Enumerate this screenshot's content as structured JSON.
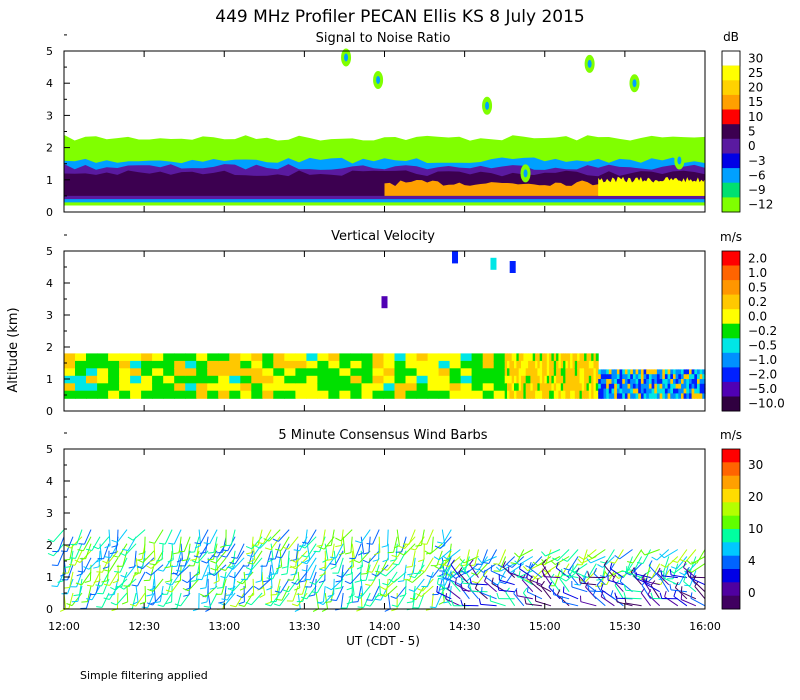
{
  "title": "449 MHz Profiler PECAN Ellis KS   8 July 2015",
  "footnote": "Simple filtering applied",
  "y_axis_label": "Altitude (km)",
  "x_axis_label": "UT  (CDT - 5)",
  "x_ticks": [
    "12:00",
    "12:30",
    "13:00",
    "13:30",
    "14:00",
    "14:30",
    "15:00",
    "15:30",
    "16:00"
  ],
  "y_ticks": [
    "0",
    "1",
    "2",
    "3",
    "4",
    "5"
  ],
  "panels": [
    {
      "id": "snr",
      "title": "Signal to Noise Ratio",
      "unit": "dB",
      "colorbar_labels": [
        "30",
        "25",
        "20",
        "15",
        "10",
        "5",
        "0",
        "−3",
        "−6",
        "−9",
        "−12"
      ],
      "colors": [
        "#ffffff",
        "#ffff00",
        "#ffd200",
        "#ffa000",
        "#ff0000",
        "#3c0050",
        "#5a1aa0",
        "#0000e6",
        "#00a0ff",
        "#00e070",
        "#80ff00"
      ]
    },
    {
      "id": "vv",
      "title": "Vertical Velocity",
      "unit": "m/s",
      "colorbar_labels": [
        "2.0",
        "1.0",
        "0.5",
        "0.2",
        "0.0",
        "−0.2",
        "−0.5",
        "−1.0",
        "−2.0",
        "−5.0",
        "−10.0"
      ],
      "colors": [
        "#ff0000",
        "#ff6400",
        "#ff9600",
        "#ffc800",
        "#ffff00",
        "#00e000",
        "#00e6e6",
        "#0090ff",
        "#0020ff",
        "#5000b4",
        "#300040"
      ]
    },
    {
      "id": "wind",
      "title": "5 Minute Consensus Wind Barbs",
      "unit": "m/s",
      "colorbar_labels": [
        "30",
        "20",
        "10",
        "4",
        "0"
      ],
      "colors": [
        "#ff0000",
        "#ff6400",
        "#ffa000",
        "#ffdc00",
        "#b4ff00",
        "#60ff00",
        "#00ffa0",
        "#00c8ff",
        "#0064ff",
        "#0000e6",
        "#5000a0",
        "#400060"
      ]
    }
  ],
  "chart_data": [
    {
      "type": "heatmap",
      "title": "Signal to Noise Ratio",
      "unit": "dB",
      "x_range": [
        "12:00",
        "16:00"
      ],
      "ylabel": "Altitude (km)",
      "ylim": [
        0,
        5
      ],
      "color_levels": [
        30,
        25,
        20,
        15,
        10,
        5,
        0,
        -3,
        -6,
        -9,
        -12
      ],
      "layers": [
        {
          "level_db": -12,
          "alt_km": [
            0.2,
            2.3
          ],
          "time_range": [
            "12:00",
            "16:00"
          ]
        },
        {
          "level_db": -6,
          "alt_km": [
            0.3,
            1.6
          ],
          "time_range": [
            "12:00",
            "16:00"
          ]
        },
        {
          "level_db": 0,
          "alt_km": [
            0.4,
            1.4
          ],
          "time_range": [
            "12:00",
            "16:00"
          ]
        },
        {
          "level_db": 5,
          "alt_km": [
            0.5,
            1.2
          ],
          "time_range": [
            "12:00",
            "16:00"
          ]
        },
        {
          "level_db": 15,
          "alt_km": [
            0.5,
            0.9
          ],
          "time_range": [
            "14:00",
            "16:00"
          ]
        },
        {
          "level_db": 25,
          "alt_km": [
            0.5,
            1.0
          ],
          "time_range": [
            "15:20",
            "16:00"
          ]
        }
      ]
    },
    {
      "type": "heatmap",
      "title": "Vertical Velocity",
      "unit": "m/s",
      "x_range": [
        "12:00",
        "16:00"
      ],
      "ylabel": "Altitude (km)",
      "ylim": [
        0,
        5
      ],
      "color_levels": [
        2.0,
        1.0,
        0.5,
        0.2,
        0.0,
        -0.2,
        -0.5,
        -1.0,
        -2.0,
        -5.0,
        -10.0
      ],
      "regions": [
        {
          "time_range": [
            "12:00",
            "14:45"
          ],
          "alt_km": [
            0.4,
            1.8
          ],
          "velocity_ms": [
            -0.5,
            0.5
          ]
        },
        {
          "time_range": [
            "14:45",
            "15:20"
          ],
          "alt_km": [
            0.4,
            1.8
          ],
          "velocity_ms": [
            0.0,
            0.5
          ]
        },
        {
          "time_range": [
            "15:20",
            "16:00"
          ],
          "alt_km": [
            0.4,
            1.3
          ],
          "velocity_ms": [
            -2.0,
            -0.5
          ]
        }
      ]
    },
    {
      "type": "wind_barbs",
      "title": "5 Minute Consensus Wind Barbs",
      "unit": "m/s",
      "x_range": [
        "12:00",
        "16:00"
      ],
      "interval_min": 5,
      "ylabel": "Altitude (km)",
      "ylim": [
        0,
        5
      ],
      "color_levels": [
        30,
        20,
        10,
        4,
        0
      ],
      "layers": [
        {
          "time_range": [
            "12:00",
            "14:25"
          ],
          "alt_km": [
            0.5,
            2.5
          ],
          "speed_ms": [
            8,
            14
          ],
          "from_deg": 200
        },
        {
          "time_range": [
            "14:25",
            "16:00"
          ],
          "alt_km": [
            1.2,
            2.0
          ],
          "speed_ms": [
            8,
            12
          ],
          "from_deg": 220
        },
        {
          "time_range": [
            "14:25",
            "16:00"
          ],
          "alt_km": [
            0.1,
            1.0
          ],
          "speed_ms": [
            0,
            6
          ],
          "from_deg": 300
        }
      ]
    }
  ]
}
